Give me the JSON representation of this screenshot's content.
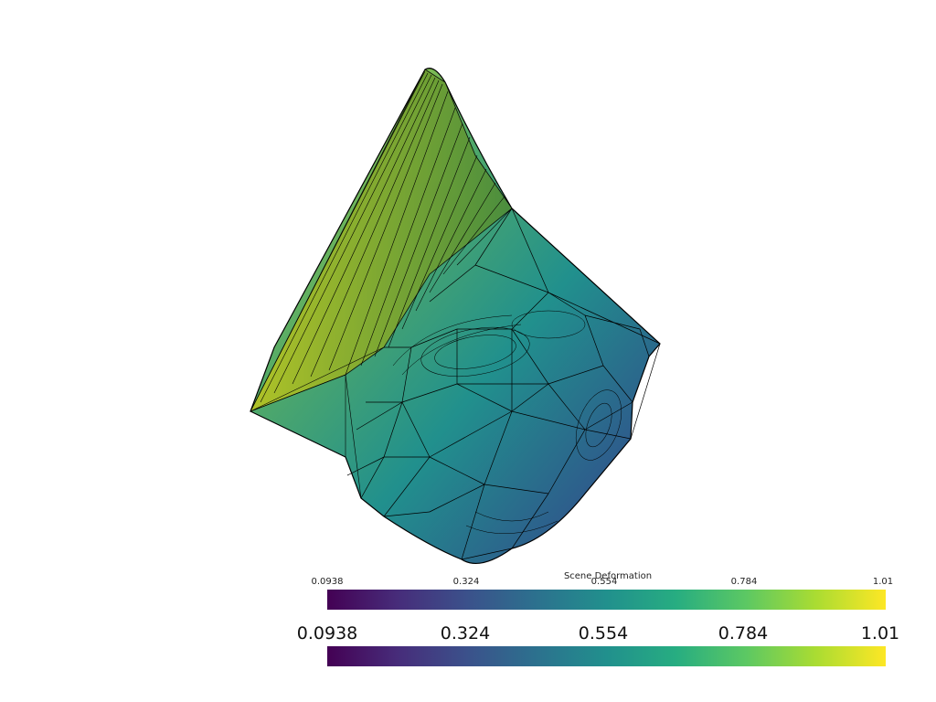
{
  "scene": {
    "scalar_name": "Scene Deformation",
    "colormap": "viridis",
    "colormap_stops": [
      "#440154",
      "#472c7a",
      "#3b518b",
      "#2c718e",
      "#21908d",
      "#27ad81",
      "#5cc863",
      "#aadc32",
      "#fde725"
    ],
    "background": "#ffffff",
    "edge_color": "#000000"
  },
  "scalar_bar_small": {
    "title": "Scene Deformation",
    "labels": [
      "0.0938",
      "0.324",
      "0.554",
      "0.784",
      "1.01"
    ]
  },
  "scalar_bar_large": {
    "labels": [
      "0.0938",
      "0.324",
      "0.554",
      "0.784",
      "1.01"
    ]
  }
}
